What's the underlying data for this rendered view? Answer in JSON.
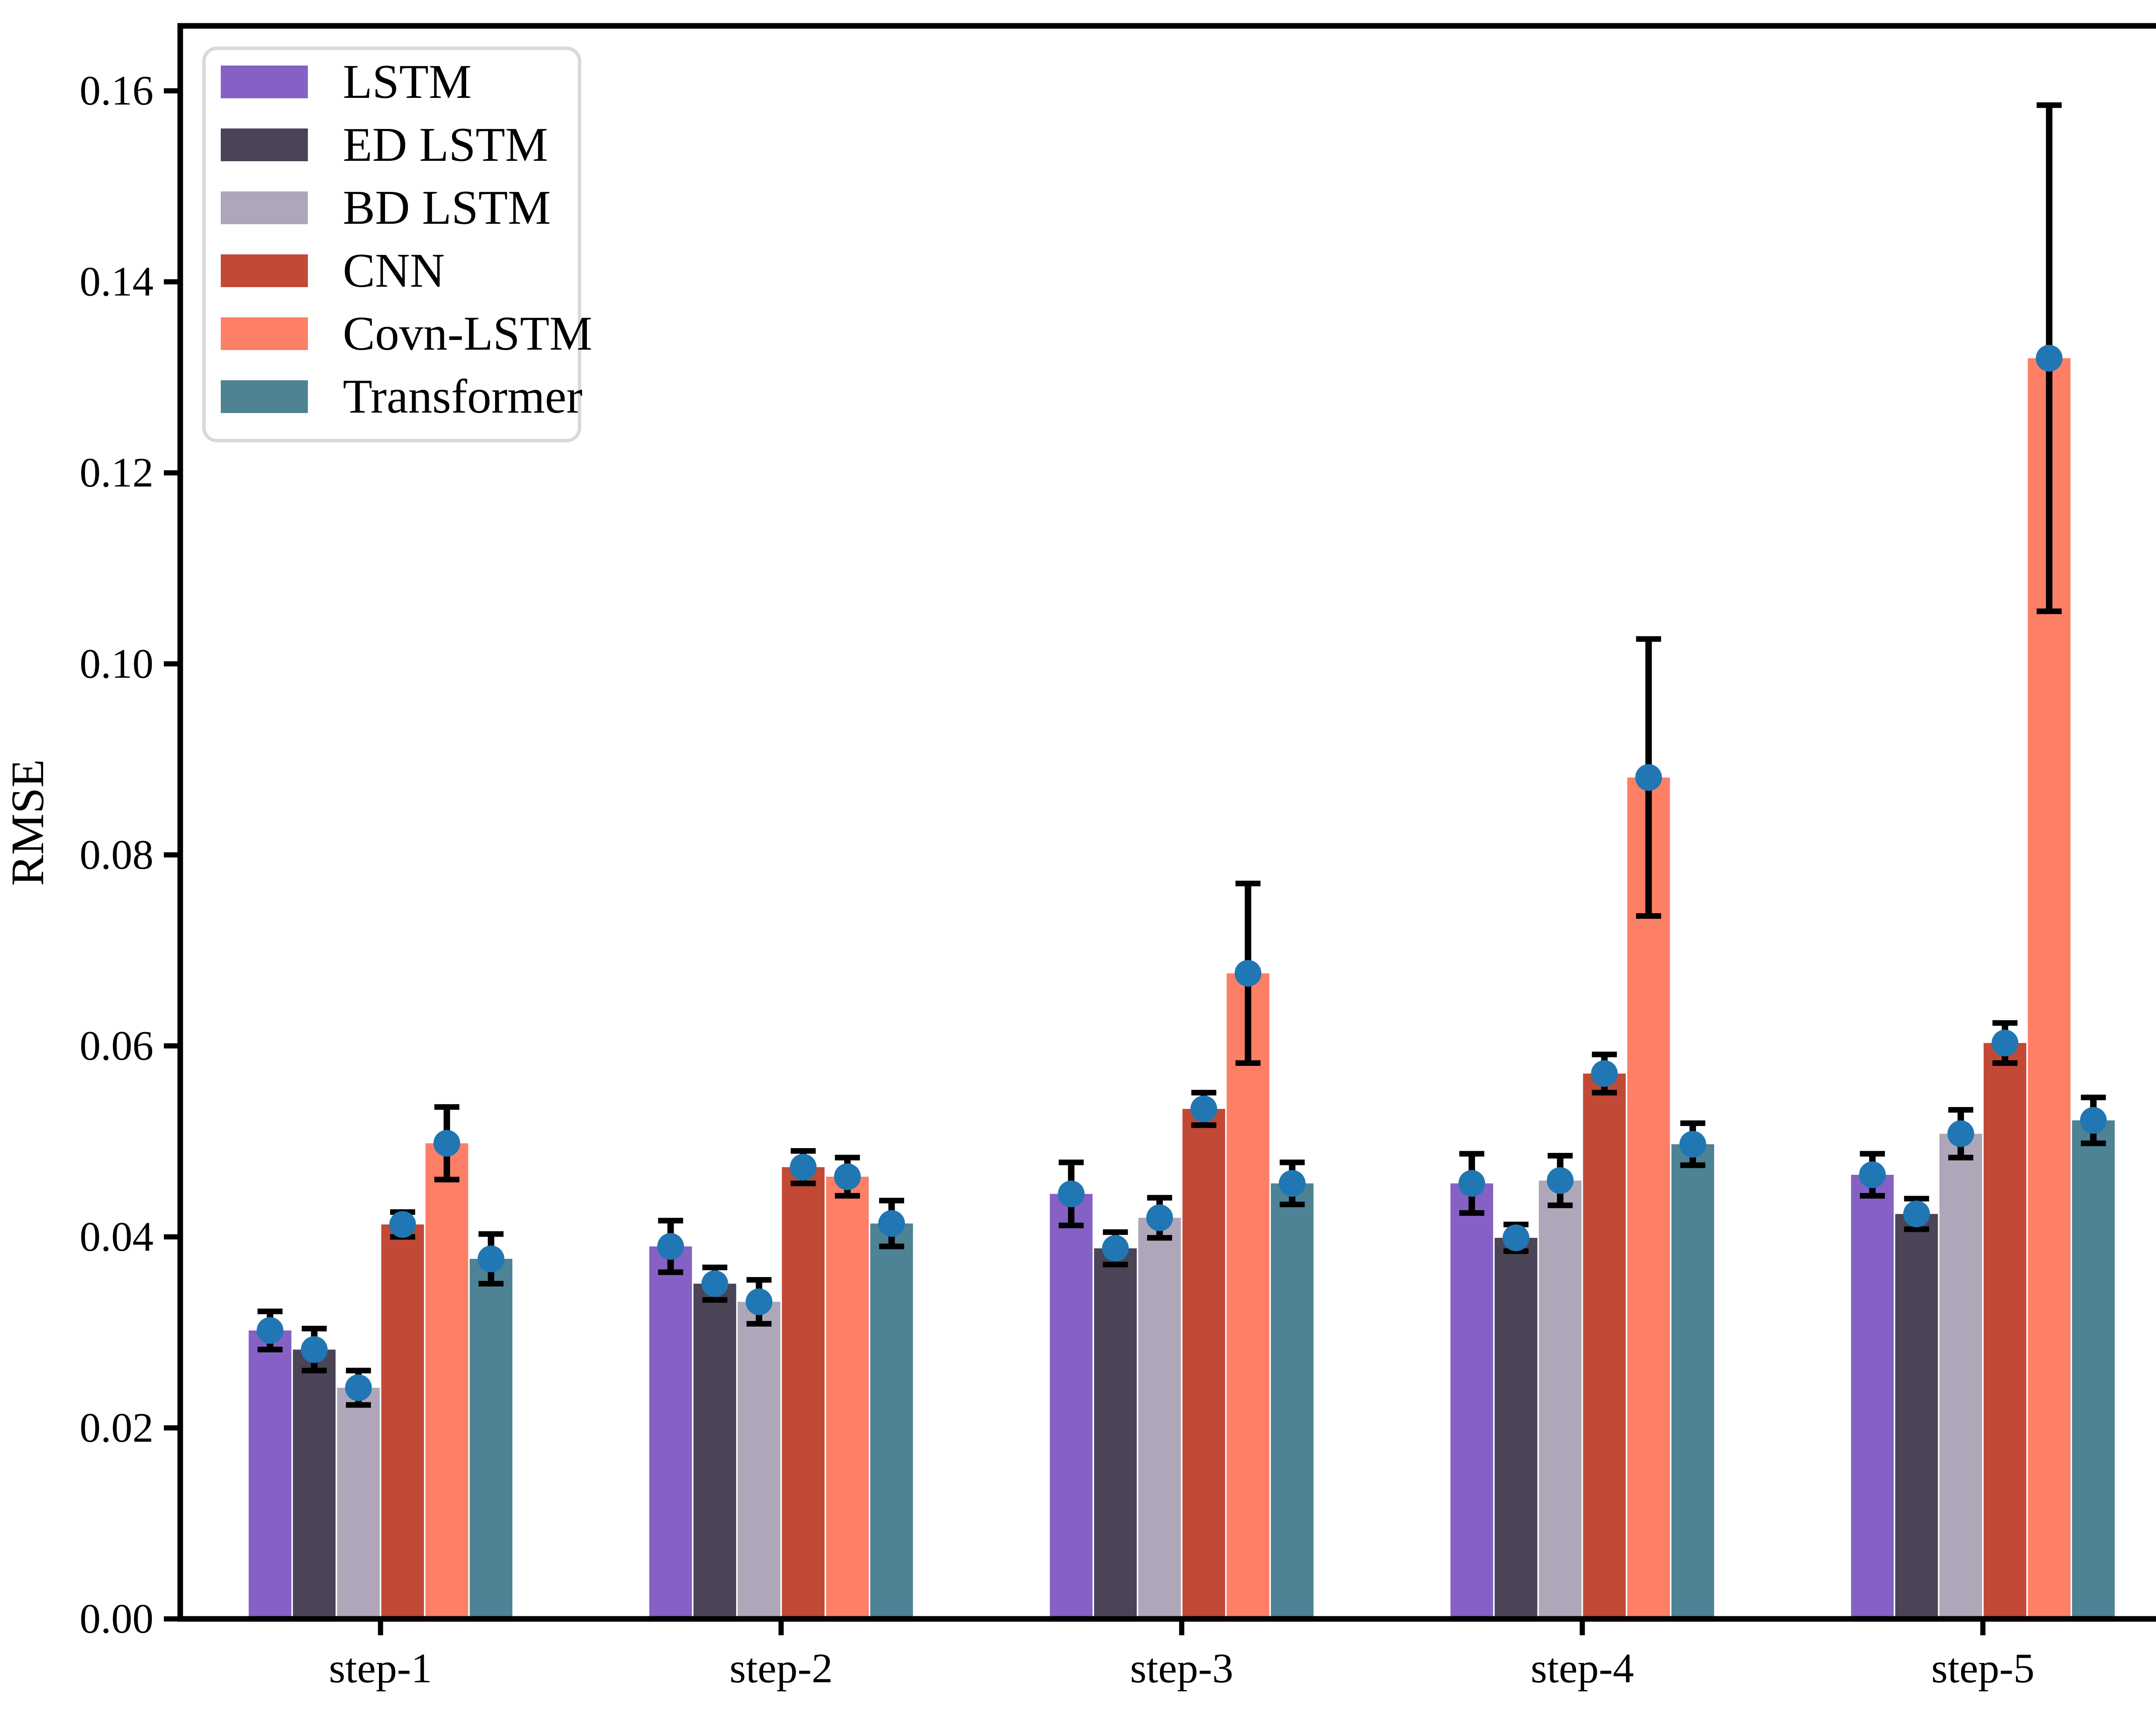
{
  "figure": {
    "background": "#ffffff",
    "frame_color": "#000000",
    "tick_color": "#000000"
  },
  "chart_data": {
    "type": "bar",
    "title": "",
    "xlabel": "",
    "ylabel": "RMSE",
    "categories": [
      "step-1",
      "step-2",
      "step-3",
      "step-4",
      "step-5"
    ],
    "series": [
      {
        "name": "LSTM",
        "color": "#8561C5",
        "values": [
          0.0302,
          0.039,
          0.0445,
          0.0456,
          0.0465
        ],
        "errors": [
          0.002,
          0.0027,
          0.0033,
          0.0031,
          0.0022
        ]
      },
      {
        "name": "ED LSTM",
        "color": "#4A4456",
        "values": [
          0.0282,
          0.0351,
          0.0388,
          0.0399,
          0.0424
        ],
        "errors": [
          0.0022,
          0.0017,
          0.0017,
          0.0014,
          0.0016
        ]
      },
      {
        "name": "BD LSTM",
        "color": "#AFA7B9",
        "values": [
          0.0242,
          0.0332,
          0.042,
          0.0459,
          0.0508
        ],
        "errors": [
          0.0018,
          0.0023,
          0.0021,
          0.0026,
          0.0025
        ]
      },
      {
        "name": "CNN",
        "color": "#C14936",
        "values": [
          0.0413,
          0.0473,
          0.0534,
          0.0571,
          0.0603
        ],
        "errors": [
          0.0013,
          0.0017,
          0.0017,
          0.002,
          0.0021
        ]
      },
      {
        "name": "Covn-LSTM",
        "color": "#FC7F66",
        "values": [
          0.0498,
          0.0463,
          0.0676,
          0.0881,
          0.132
        ],
        "errors": [
          0.0038,
          0.002,
          0.0094,
          0.0145,
          0.0265
        ]
      },
      {
        "name": "Transformer",
        "color": "#4E8295",
        "values": [
          0.0377,
          0.0414,
          0.0456,
          0.0497,
          0.0522
        ],
        "errors": [
          0.0026,
          0.0024,
          0.0022,
          0.0022,
          0.0024
        ]
      }
    ],
    "marker": {
      "shape": "circle",
      "color": "#2077B4"
    },
    "error_bar_color": "#000000",
    "y_ticks": [
      "0.00",
      "0.02",
      "0.04",
      "0.06",
      "0.08",
      "0.10",
      "0.12",
      "0.14",
      "0.16"
    ],
    "ylim": [
      0,
      0.1668
    ],
    "grid": false,
    "legend": {
      "position": "upper left",
      "border_color": "#D9D9D9",
      "background": "#ffffff",
      "entries": [
        "LSTM",
        "ED LSTM",
        "BD LSTM",
        "CNN",
        "Covn-LSTM",
        "Transformer"
      ]
    }
  }
}
